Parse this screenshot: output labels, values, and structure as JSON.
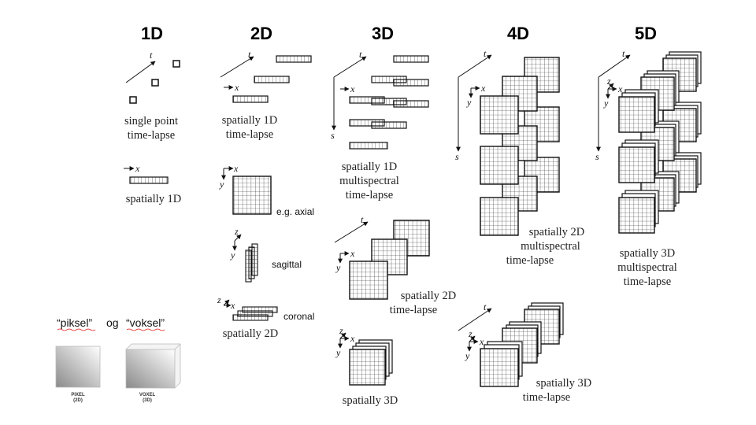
{
  "headers": {
    "h1d": "1D",
    "h2d": "2D",
    "h3d": "3D",
    "h4d": "4D",
    "h5d": "5D"
  },
  "axes": {
    "t": "t",
    "x": "x",
    "y": "y",
    "z": "z",
    "s": "s"
  },
  "captions": {
    "single_point_1": "single point",
    "single_point_2": "time-lapse",
    "spatially_1d_a": "spatially 1D",
    "sp1d_tl_1": "spatially 1D",
    "sp1d_tl_2": "time-lapse",
    "axial": "e.g. axial",
    "sagittal": "sagittal",
    "coronal": "coronal",
    "spatially_2d": "spatially 2D",
    "sp1d_ms_1": "spatially 1D",
    "sp1d_ms_2": "multispectral",
    "sp1d_ms_3": "time-lapse",
    "sp2d_tl_1": "spatially 2D",
    "sp2d_tl_2": "time-lapse",
    "spatially_3d": "spatially 3D",
    "sp2d_ms_1": "spatially 2D",
    "sp2d_ms_2": "multispectral",
    "sp2d_ms_3": "time-lapse",
    "sp3d_tl_1": "spatially 3D",
    "sp3d_tl_2": "time-lapse",
    "sp3d_ms_1": "spatially 3D",
    "sp3d_ms_2": "multispectral",
    "sp3d_ms_3": "time-lapse"
  },
  "legend": {
    "piksel": "“piksel”",
    "og": "og",
    "voksel": "“voksel”",
    "pixel_label": "PIXEL",
    "pixel_sub": "(2D)",
    "voxel_label": "VOXEL",
    "voxel_sub": "(3D)"
  }
}
